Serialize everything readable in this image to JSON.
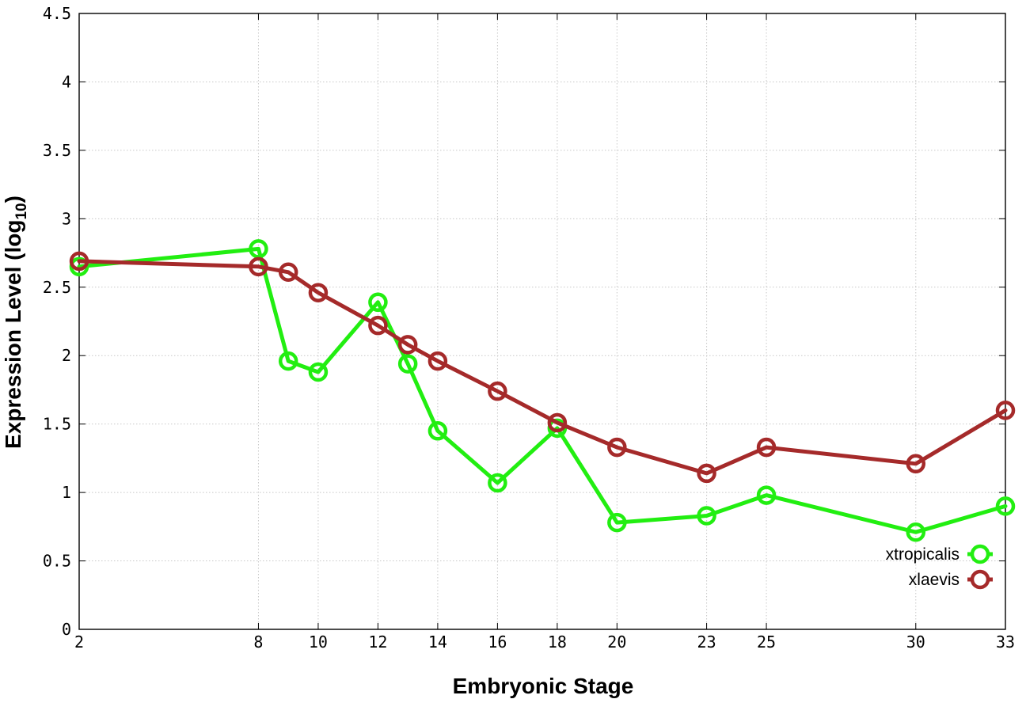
{
  "chart_data": {
    "type": "line",
    "title": "",
    "xlabel": "Embryonic Stage",
    "ylabel_main": "Expression Level (log",
    "ylabel_sub": "10",
    "ylabel_end": ")",
    "x_ticks": [
      2,
      8,
      10,
      12,
      14,
      16,
      18,
      20,
      23,
      25,
      30,
      33
    ],
    "x_tick_labels": [
      "2",
      "8",
      "10",
      "12",
      "14",
      "16",
      "18",
      "20",
      "23",
      "25",
      "30",
      "33"
    ],
    "x_tick_positions": [
      2,
      8,
      10,
      12,
      14,
      16,
      18,
      20,
      23,
      25,
      30,
      33
    ],
    "y_ticks": [
      0,
      0.5,
      1,
      1.5,
      2,
      2.5,
      3,
      3.5,
      4,
      4.5
    ],
    "y_tick_labels": [
      "0",
      "0.5",
      "1",
      "1.5",
      "2",
      "2.5",
      "3",
      "3.5",
      "4",
      "4.5"
    ],
    "xlim": [
      2,
      33
    ],
    "ylim": [
      0,
      4.5
    ],
    "grid": true,
    "legend_position": "bottom-right",
    "series": [
      {
        "name": "xtropicalis",
        "color": "#22ee11",
        "x": [
          2,
          8,
          9,
          10,
          12,
          13,
          14,
          16,
          18,
          20,
          23,
          25,
          30,
          33
        ],
        "y": [
          2.65,
          2.78,
          1.96,
          1.88,
          2.39,
          1.94,
          1.45,
          1.07,
          1.47,
          0.78,
          0.83,
          0.98,
          0.71,
          0.9
        ]
      },
      {
        "name": "xlaevis",
        "color": "#a52a2a",
        "x": [
          2,
          8,
          9,
          10,
          12,
          13,
          14,
          16,
          18,
          20,
          23,
          25,
          30,
          33
        ],
        "y": [
          2.69,
          2.65,
          2.61,
          2.46,
          2.22,
          2.08,
          1.96,
          1.74,
          1.51,
          1.33,
          1.14,
          1.33,
          1.21,
          1.6
        ]
      }
    ]
  }
}
